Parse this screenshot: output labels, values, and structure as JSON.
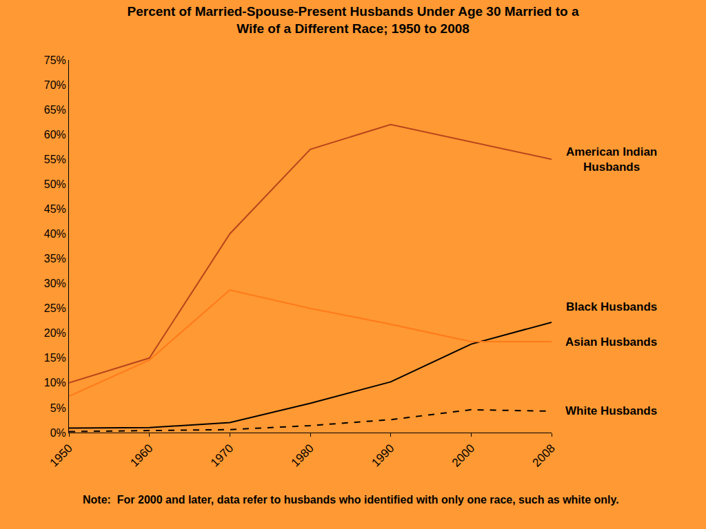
{
  "chart_data": {
    "type": "line",
    "title": "Percent of Married-Spouse-Present Husbands Under Age 30 Married to a\nWife of a Different Race; 1950 to 2008",
    "categories": [
      "1950",
      "1960",
      "1970",
      "1980",
      "1990",
      "2000",
      "2008"
    ],
    "series": [
      {
        "name": "American Indian\nHusbands",
        "color": "#B8441C",
        "line_style": "solid",
        "values": [
          10,
          15,
          40,
          57,
          62,
          58.5,
          55
        ]
      },
      {
        "name": "Black Husbands",
        "color": "#000000",
        "line_style": "solid",
        "values": [
          0.9,
          1.0,
          2.0,
          5.9,
          10.2,
          17.8,
          22.2
        ]
      },
      {
        "name": "Asian Husbands",
        "color": "#FF7A1A",
        "line_style": "solid",
        "values": [
          7.3,
          14.6,
          28.7,
          25,
          21.8,
          18.3,
          18.3
        ]
      },
      {
        "name": "White Husbands",
        "color": "#000000",
        "line_style": "dashed",
        "values": [
          0.2,
          0.4,
          0.6,
          1.4,
          2.6,
          4.6,
          4.3
        ]
      }
    ],
    "ylim": [
      0,
      75
    ],
    "yticks": [
      {
        "value": 0,
        "label": "0%"
      },
      {
        "value": 5,
        "label": "5%"
      },
      {
        "value": 10,
        "label": "10%"
      },
      {
        "value": 15,
        "label": "15%"
      },
      {
        "value": 20,
        "label": "20%"
      },
      {
        "value": 25,
        "label": "25%"
      },
      {
        "value": 30,
        "label": "30%"
      },
      {
        "value": 35,
        "label": "35%"
      },
      {
        "value": 40,
        "label": "40%"
      },
      {
        "value": 45,
        "label": "45%"
      },
      {
        "value": 50,
        "label": "50%"
      },
      {
        "value": 55,
        "label": "55%"
      },
      {
        "value": 60,
        "label": "60%"
      },
      {
        "value": 65,
        "label": "65%"
      },
      {
        "value": 70,
        "label": "70%"
      },
      {
        "value": 75,
        "label": "75%"
      }
    ],
    "grid": false,
    "note": "Note:  For 2000 and later, data refer to husbands who identified with only one race, such as white only."
  }
}
